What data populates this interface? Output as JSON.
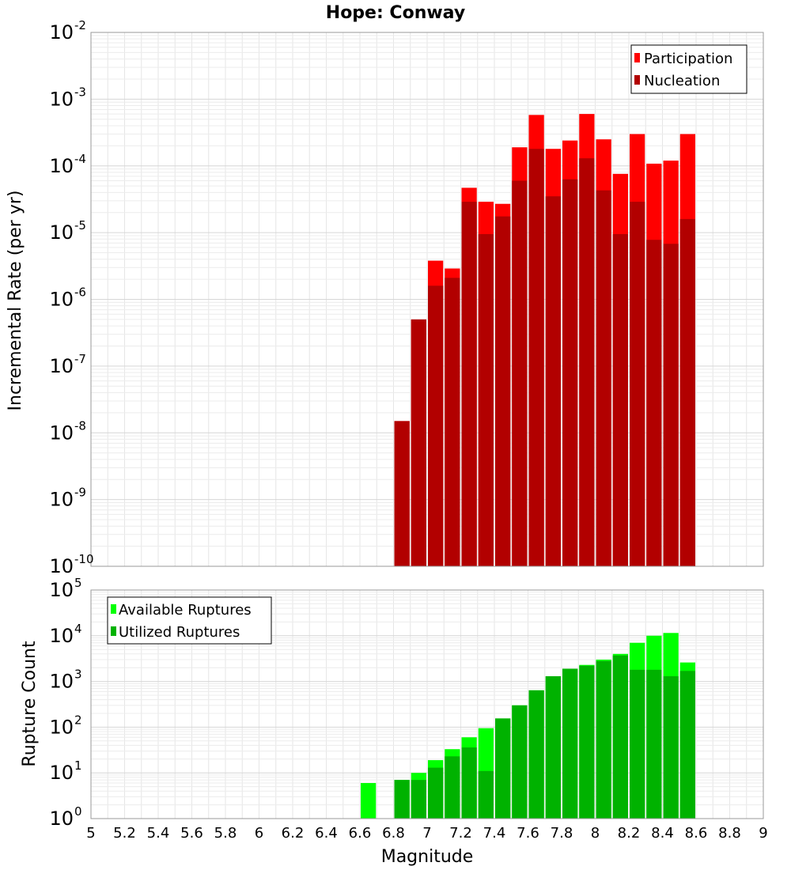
{
  "figure": {
    "title": "Hope: Conway",
    "xlabel": "Magnitude"
  },
  "chart_data": [
    {
      "type": "bar",
      "panel": "top",
      "ylabel": "Incremental Rate (per yr)",
      "yscale": "log",
      "ylim": [
        1e-10,
        0.01
      ],
      "xlim": [
        5,
        9
      ],
      "grid": true,
      "legend_position": "top-right",
      "bin_width": 0.1,
      "x": [
        6.85,
        6.95,
        7.05,
        7.15,
        7.25,
        7.35,
        7.45,
        7.55,
        7.65,
        7.75,
        7.85,
        7.95,
        8.05,
        8.15,
        8.25,
        8.35,
        8.45,
        8.55
      ],
      "series": [
        {
          "name": "Participation",
          "color": "#ff0000",
          "values": [
            1.5e-08,
            5e-07,
            3.8e-06,
            2.9e-06,
            4.7e-05,
            2.9e-05,
            2.7e-05,
            0.00019,
            0.00058,
            0.00018,
            0.00024,
            0.0006,
            0.00025,
            7.6e-05,
            0.0003,
            0.000108,
            0.00012,
            0.0003
          ]
        },
        {
          "name": "Nucleation",
          "color": "#b20000",
          "values": [
            1.5e-08,
            5e-07,
            1.6e-06,
            2.1e-06,
            2.9e-05,
            9.5e-06,
            1.75e-05,
            6e-05,
            0.00018,
            3.5e-05,
            6.3e-05,
            0.00013,
            4.3e-05,
            9.5e-06,
            2.9e-05,
            7.8e-06,
            6.8e-06,
            1.6e-05
          ]
        }
      ]
    },
    {
      "type": "bar",
      "panel": "bottom",
      "ylabel": "Rupture Count",
      "yscale": "log",
      "ylim": [
        1,
        100000.0
      ],
      "xlim": [
        5,
        9
      ],
      "grid": true,
      "legend_position": "top-left",
      "bin_width": 0.1,
      "x": [
        6.65,
        6.85,
        6.95,
        7.05,
        7.15,
        7.25,
        7.35,
        7.45,
        7.55,
        7.65,
        7.75,
        7.85,
        7.95,
        8.05,
        8.15,
        8.25,
        8.35,
        8.45,
        8.55
      ],
      "series": [
        {
          "name": "Available Ruptures",
          "color": "#00ff00",
          "values": [
            6,
            7,
            10,
            19,
            33,
            60,
            95,
            155,
            300,
            640,
            1300,
            1900,
            2300,
            3000,
            4000,
            7000,
            10000,
            11500,
            2600
          ]
        },
        {
          "name": "Utilized Ruptures",
          "color": "#00b200",
          "values": [
            0,
            7,
            7,
            13,
            23,
            36,
            11,
            155,
            300,
            640,
            1300,
            1900,
            2200,
            2800,
            3700,
            1800,
            1800,
            1300,
            1700
          ]
        }
      ]
    }
  ],
  "ticks": {
    "x_labels": [
      "5",
      "5.2",
      "5.4",
      "5.6",
      "5.8",
      "6",
      "6.2",
      "6.4",
      "6.6",
      "6.8",
      "7",
      "7.2",
      "7.4",
      "7.6",
      "7.8",
      "8",
      "8.2",
      "8.4",
      "8.6",
      "8.8",
      "9"
    ],
    "top_y": [
      {
        "base": "10",
        "exp": "-2"
      },
      {
        "base": "10",
        "exp": "-3"
      },
      {
        "base": "10",
        "exp": "-4"
      },
      {
        "base": "10",
        "exp": "-5"
      },
      {
        "base": "10",
        "exp": "-6"
      },
      {
        "base": "10",
        "exp": "-7"
      },
      {
        "base": "10",
        "exp": "-8"
      },
      {
        "base": "10",
        "exp": "-9"
      },
      {
        "base": "10",
        "exp": "-10"
      }
    ],
    "bottom_y": [
      {
        "base": "10",
        "exp": "5"
      },
      {
        "base": "10",
        "exp": "4"
      },
      {
        "base": "10",
        "exp": "3"
      },
      {
        "base": "10",
        "exp": "2"
      },
      {
        "base": "10",
        "exp": "1"
      },
      {
        "base": "10",
        "exp": "0"
      }
    ]
  }
}
